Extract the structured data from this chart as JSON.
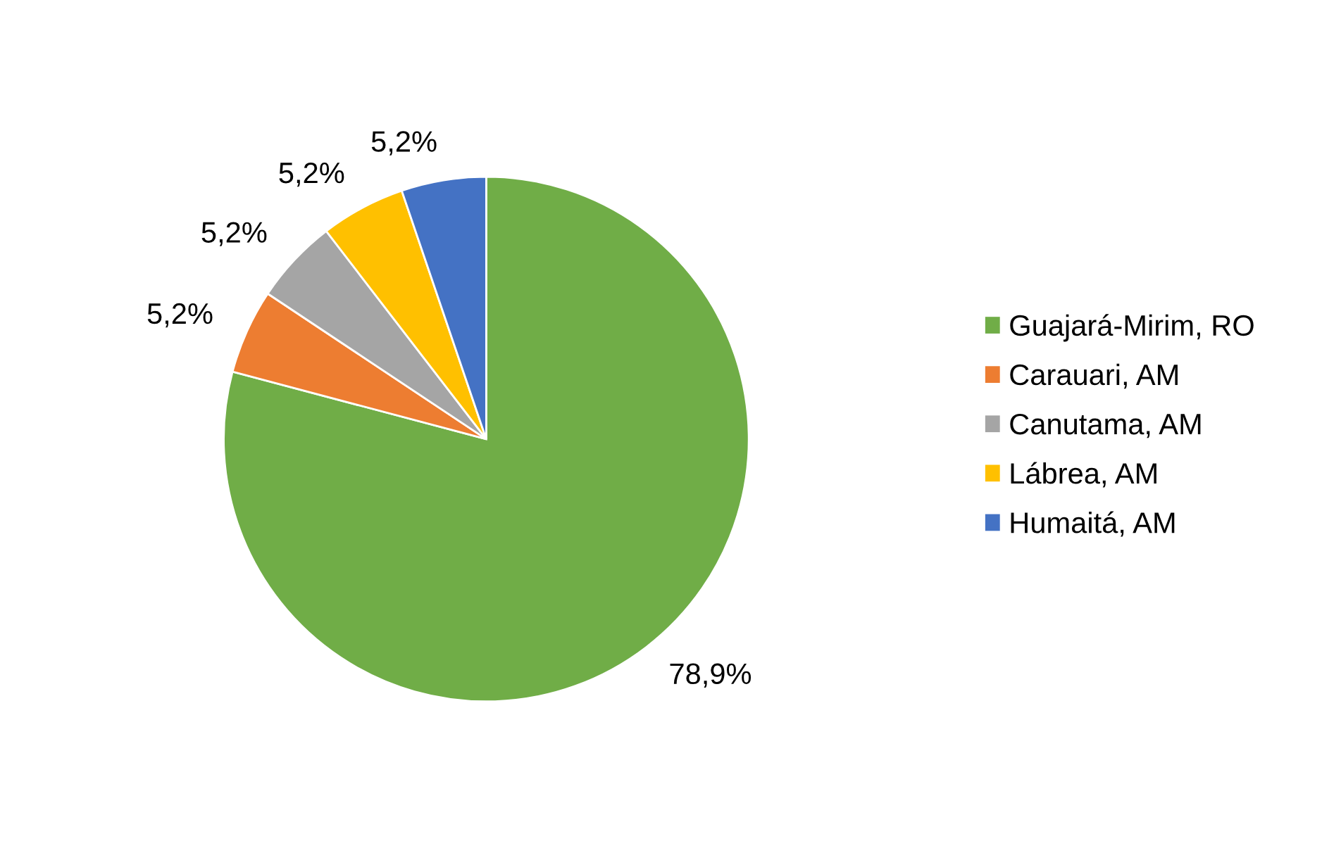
{
  "chart_data": {
    "type": "pie",
    "categories": [
      "Guajará-Mirim, RO",
      "Carauari, AM",
      "Canutama, AM",
      "Lábrea, AM",
      "Humaitá, AM"
    ],
    "values": [
      78.9,
      5.2,
      5.2,
      5.2,
      5.2
    ],
    "value_labels": [
      "78,9%",
      "5,2%",
      "5,2%",
      "5,2%",
      "5,2%"
    ],
    "colors": [
      "#70ad47",
      "#ed7d31",
      "#a5a5a5",
      "#ffc000",
      "#4472c4"
    ],
    "legend": "right"
  }
}
